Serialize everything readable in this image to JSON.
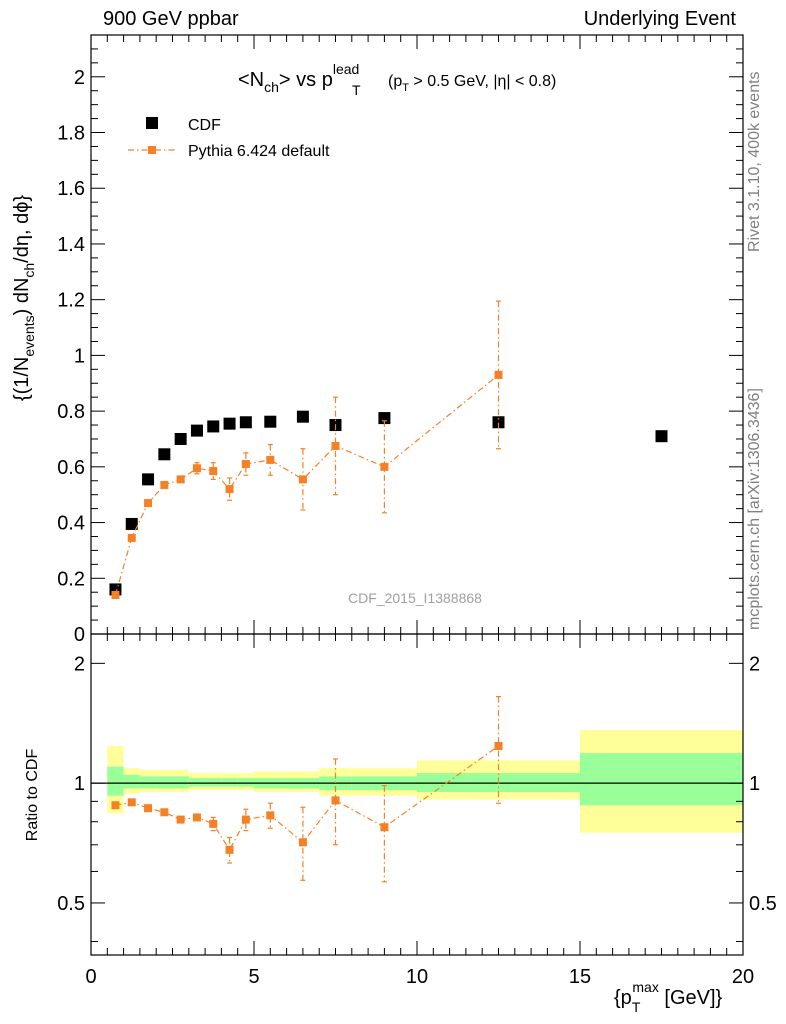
{
  "header": {
    "left": "900 GeV ppbar",
    "right": "Underlying Event"
  },
  "side_labels": {
    "rivet": "Rivet 3.1.10,  400k events",
    "mcplots": "mcplots.cern.ch [arXiv:1306.3436]"
  },
  "chart_data": [
    {
      "panel": "main",
      "type": "scatter",
      "title": "<N_ch> vs p_T^lead (p_T > 0.5 GeV, |η| < 0.8)",
      "title_main": "<N",
      "title_sub": "ch",
      "title_vs": "> vs p",
      "title_sup": "lead",
      "title_sub2": "T",
      "title_cut": "(p",
      "title_cut_sub": "T",
      "title_cut_rest": " > 0.5 GeV, |η| < 0.8)",
      "ylabel": "{(1/N_events) dN_ch/dη, dϕ}",
      "ylabel_parts": [
        "{(1/N",
        "events",
        ") dN",
        "ch",
        "/dη, dϕ}"
      ],
      "watermark": "CDF_2015_I1388868",
      "xlim": [
        0,
        20
      ],
      "ylim": [
        0,
        2.15
      ],
      "xticks": [
        0,
        5,
        10,
        15,
        20
      ],
      "yticks": [
        0,
        0.2,
        0.4,
        0.6,
        0.8,
        1,
        1.2,
        1.4,
        1.6,
        1.8,
        2
      ],
      "ytick_labels": [
        "0",
        "0.2",
        "0.4",
        "0.6",
        "0.8",
        "1",
        "1.2",
        "1.4",
        "1.6",
        "1.8",
        "2"
      ],
      "legend_position": "top-left",
      "series": [
        {
          "name": "CDF",
          "color": "#000000",
          "marker": "square",
          "x": [
            0.75,
            1.25,
            1.75,
            2.25,
            2.75,
            3.25,
            3.75,
            4.25,
            4.75,
            5.5,
            6.5,
            7.5,
            9.0,
            12.5,
            17.5
          ],
          "xerr": [
            0.25,
            0.25,
            0.25,
            0.25,
            0.25,
            0.25,
            0.25,
            0.25,
            0.25,
            0.5,
            0.5,
            0.5,
            1.0,
            2.5,
            2.5
          ],
          "y": [
            0.16,
            0.395,
            0.555,
            0.645,
            0.7,
            0.73,
            0.745,
            0.755,
            0.76,
            0.762,
            0.78,
            0.75,
            0.775,
            0.76,
            0.71
          ]
        },
        {
          "name": "Pythia 6.424 default",
          "color": "#f58025",
          "marker": "square-dashdot",
          "x": [
            0.75,
            1.25,
            1.75,
            2.25,
            2.75,
            3.25,
            3.75,
            4.25,
            4.75,
            5.5,
            6.5,
            7.5,
            9.0,
            12.5
          ],
          "xerr": [
            0.25,
            0.25,
            0.25,
            0.25,
            0.25,
            0.25,
            0.25,
            0.25,
            0.25,
            0.5,
            0.5,
            0.5,
            1.0,
            2.5
          ],
          "y": [
            0.14,
            0.345,
            0.47,
            0.535,
            0.555,
            0.595,
            0.585,
            0.52,
            0.61,
            0.625,
            0.555,
            0.675,
            0.6,
            0.93
          ],
          "yerr": [
            0.01,
            0.01,
            0.01,
            0.01,
            0.012,
            0.02,
            0.03,
            0.04,
            0.04,
            0.055,
            0.11,
            0.175,
            0.165,
            0.265
          ]
        }
      ]
    },
    {
      "panel": "ratio",
      "type": "scatter",
      "ylabel": "Ratio to CDF",
      "xlabel": "{p_T^max [GeV]}",
      "xlabel_parts": [
        "{p",
        "T",
        "max",
        " [GeV]}"
      ],
      "xlim": [
        0,
        20
      ],
      "ylim": [
        0.37,
        2.37
      ],
      "yscale": "log",
      "xticks": [
        0,
        5,
        10,
        15,
        20
      ],
      "xtick_labels": [
        "0",
        "5",
        "10",
        "15",
        "20"
      ],
      "yticks": [
        0.5,
        1,
        2
      ],
      "ytick_labels": [
        "0.5",
        "1",
        "2"
      ],
      "bands": {
        "x_edges": [
          0.5,
          1.0,
          1.5,
          2.0,
          2.5,
          3.0,
          3.5,
          4.0,
          4.5,
          5.0,
          6.0,
          7.0,
          8.0,
          10.0,
          15.0,
          20.0
        ],
        "inner_lo": [
          0.93,
          0.97,
          0.97,
          0.97,
          0.97,
          0.98,
          0.98,
          0.98,
          0.98,
          0.97,
          0.97,
          0.96,
          0.96,
          0.95,
          0.88
        ],
        "inner_hi": [
          1.1,
          1.05,
          1.04,
          1.04,
          1.04,
          1.03,
          1.03,
          1.03,
          1.03,
          1.03,
          1.03,
          1.04,
          1.04,
          1.06,
          1.19
        ],
        "outer_lo": [
          0.84,
          0.94,
          0.95,
          0.95,
          0.95,
          0.96,
          0.96,
          0.96,
          0.96,
          0.95,
          0.95,
          0.93,
          0.93,
          0.91,
          0.75
        ],
        "outer_hi": [
          1.24,
          1.09,
          1.08,
          1.08,
          1.08,
          1.06,
          1.06,
          1.06,
          1.06,
          1.07,
          1.07,
          1.09,
          1.09,
          1.14,
          1.36
        ],
        "inner_color": "#99ff99",
        "outer_color": "#ffff99"
      },
      "series": [
        {
          "name": "Pythia 6.424 default",
          "color": "#f58025",
          "x": [
            0.75,
            1.25,
            1.75,
            2.25,
            2.75,
            3.25,
            3.75,
            4.25,
            4.75,
            5.5,
            6.5,
            7.5,
            9.0,
            12.5
          ],
          "xerr": [
            0.25,
            0.25,
            0.25,
            0.25,
            0.25,
            0.25,
            0.25,
            0.25,
            0.25,
            0.5,
            0.5,
            0.5,
            1.0,
            2.5
          ],
          "y": [
            0.88,
            0.895,
            0.865,
            0.845,
            0.81,
            0.82,
            0.79,
            0.68,
            0.81,
            0.83,
            0.71,
            0.905,
            0.775,
            1.24
          ],
          "ylo": [
            0.87,
            0.885,
            0.855,
            0.835,
            0.8,
            0.8,
            0.76,
            0.63,
            0.76,
            0.77,
            0.57,
            0.7,
            0.565,
            0.89
          ],
          "yhi": [
            0.89,
            0.905,
            0.875,
            0.855,
            0.82,
            0.84,
            0.82,
            0.73,
            0.86,
            0.89,
            0.87,
            1.15,
            0.985,
            1.65
          ]
        }
      ]
    }
  ]
}
